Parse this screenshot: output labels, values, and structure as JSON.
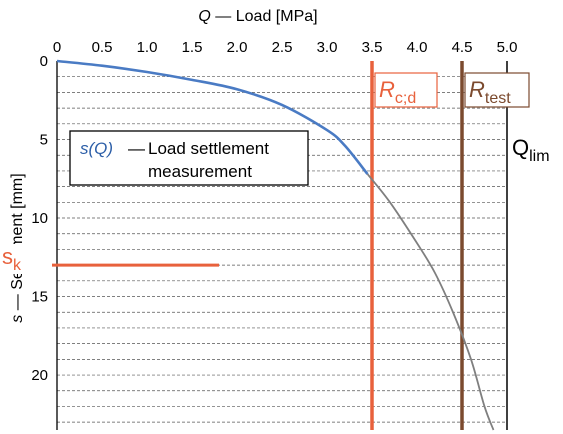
{
  "chart_data": {
    "type": "line",
    "title": "",
    "x_axis": {
      "label_var": "Q",
      "label_text": " — Load [MPa]",
      "range": [
        0,
        5.0
      ],
      "ticks": [
        "0",
        "0.5",
        "1.0",
        "1.5",
        "2.0",
        "2.5",
        "3.0",
        "3.5",
        "4.0",
        "4.5",
        "5.0"
      ],
      "position": "top"
    },
    "y_axis": {
      "label_var": "s",
      "label_text": " — Settlement [mm]",
      "range": [
        0,
        23.5
      ],
      "inverted": true,
      "ticks": [
        "0",
        "5",
        "10",
        "15",
        "20"
      ],
      "grid": "dashed every 1 mm"
    },
    "series": [
      {
        "name": "measured",
        "color": "#4a7bc4",
        "style": "solid",
        "points": [
          [
            0,
            0
          ],
          [
            0.5,
            0.3
          ],
          [
            1.0,
            0.7
          ],
          [
            1.5,
            1.2
          ],
          [
            2.0,
            1.8
          ],
          [
            2.5,
            2.8
          ],
          [
            3.0,
            4.4
          ],
          [
            3.2,
            5.4
          ],
          [
            3.45,
            7.2
          ]
        ]
      },
      {
        "name": "extrapolated",
        "color": "#7f7f7f",
        "style": "solid",
        "points": [
          [
            3.45,
            7.2
          ],
          [
            3.7,
            9.0
          ],
          [
            4.0,
            11.6
          ],
          [
            4.2,
            13.5
          ],
          [
            4.4,
            16.0
          ],
          [
            4.6,
            19.0
          ],
          [
            4.75,
            22.0
          ],
          [
            4.85,
            23.5
          ]
        ]
      }
    ],
    "vertical_lines": [
      {
        "x": 3.5,
        "color": "#e8613c",
        "label_main": "R",
        "label_sub": "c;d"
      },
      {
        "x": 4.5,
        "color": "#7b4a2e",
        "label_main": "R",
        "label_sub": "test"
      },
      {
        "x": 5.0,
        "color": "#000000",
        "label_main": "Q",
        "label_sub": "lim"
      }
    ],
    "horizontal_lines": [
      {
        "y": 13,
        "x_start": 0,
        "x_end": 1.8,
        "color": "#e8613c",
        "label_main": "s",
        "label_sub": "k"
      }
    ],
    "legend": {
      "placement": "left-middle",
      "series_label": "s(Q)",
      "dash": "—",
      "text_line1": "Load settlement",
      "text_line2": "measurement"
    }
  }
}
